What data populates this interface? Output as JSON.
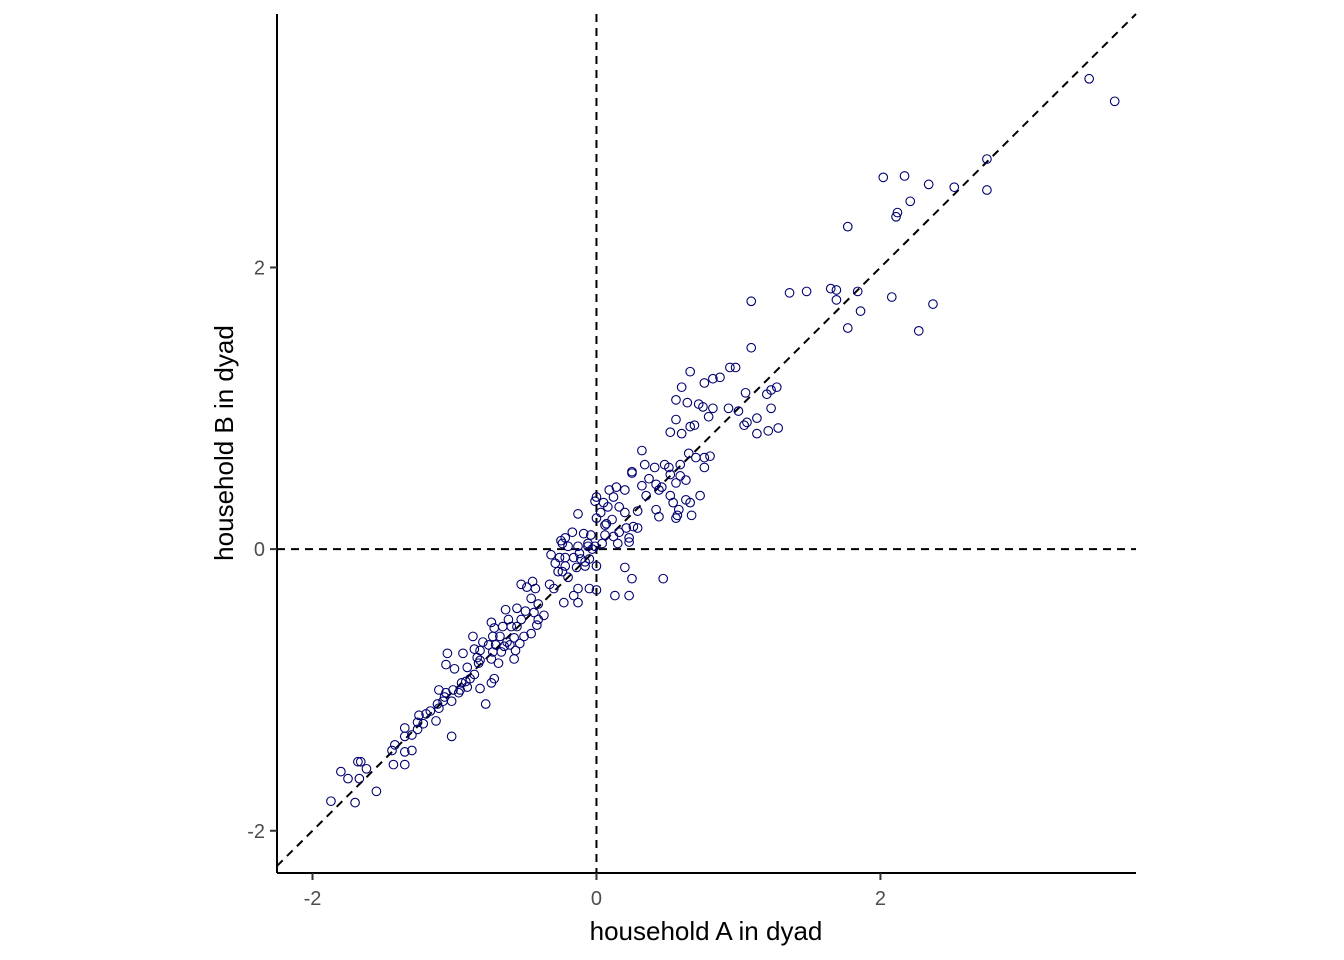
{
  "chart_data": {
    "type": "scatter",
    "title": "",
    "xlabel": "household A in dyad",
    "ylabel": "household B in dyad",
    "xlim": [
      -2.25,
      3.8
    ],
    "ylim": [
      -2.3,
      3.8
    ],
    "x_ticks": [
      -2,
      0,
      2
    ],
    "x_tick_labels": [
      "-2",
      "0",
      "2"
    ],
    "y_ticks": [
      -2,
      0,
      2
    ],
    "y_tick_labels": [
      "-2",
      "0",
      "2"
    ],
    "grid": false,
    "legend": "none",
    "point_color": "#00006e",
    "reference_lines": [
      {
        "kind": "vertical",
        "x": 0,
        "style": "dashed"
      },
      {
        "kind": "horizontal",
        "y": 0,
        "style": "dashed"
      },
      {
        "kind": "identity",
        "slope": 1,
        "intercept": 0,
        "style": "dashed"
      }
    ],
    "series": [
      {
        "points": [
          [
            3.47,
            3.34
          ],
          [
            3.65,
            3.18
          ],
          [
            2.75,
            2.77
          ],
          [
            2.75,
            2.55
          ],
          [
            2.52,
            2.57
          ],
          [
            2.34,
            2.59
          ],
          [
            2.17,
            2.65
          ],
          [
            2.02,
            2.64
          ],
          [
            2.12,
            2.39
          ],
          [
            2.21,
            2.47
          ],
          [
            2.11,
            2.36
          ],
          [
            1.77,
            2.29
          ],
          [
            1.36,
            1.82
          ],
          [
            1.48,
            1.83
          ],
          [
            1.65,
            1.85
          ],
          [
            1.69,
            1.84
          ],
          [
            1.69,
            1.77
          ],
          [
            1.84,
            1.83
          ],
          [
            1.86,
            1.69
          ],
          [
            2.08,
            1.79
          ],
          [
            2.37,
            1.74
          ],
          [
            1.09,
            1.76
          ],
          [
            1.77,
            1.57
          ],
          [
            2.27,
            1.55
          ],
          [
            1.09,
            1.43
          ],
          [
            0.94,
            1.29
          ],
          [
            0.98,
            1.29
          ],
          [
            0.66,
            1.26
          ],
          [
            0.6,
            1.15
          ],
          [
            0.76,
            1.18
          ],
          [
            0.87,
            1.22
          ],
          [
            0.82,
            1.21
          ],
          [
            1.27,
            1.15
          ],
          [
            1.05,
            1.11
          ],
          [
            1.2,
            1.1
          ],
          [
            1.23,
            1.13
          ],
          [
            0.56,
            1.06
          ],
          [
            0.64,
            1.04
          ],
          [
            0.75,
            1.01
          ],
          [
            0.72,
            1.03
          ],
          [
            0.82,
            1.0
          ],
          [
            1.23,
            1.0
          ],
          [
            0.93,
            1.0
          ],
          [
            1.0,
            0.98
          ],
          [
            1.13,
            0.93
          ],
          [
            0.56,
            0.92
          ],
          [
            0.79,
            0.94
          ],
          [
            0.69,
            0.88
          ],
          [
            0.66,
            0.87
          ],
          [
            1.04,
            0.88
          ],
          [
            1.06,
            0.9
          ],
          [
            1.21,
            0.84
          ],
          [
            1.28,
            0.86
          ],
          [
            1.13,
            0.82
          ],
          [
            0.52,
            0.83
          ],
          [
            0.6,
            0.82
          ],
          [
            0.76,
            0.65
          ],
          [
            0.8,
            0.66
          ],
          [
            0.7,
            0.65
          ],
          [
            0.65,
            0.68
          ],
          [
            0.32,
            0.7
          ],
          [
            0.25,
            0.55
          ],
          [
            0.25,
            0.54
          ],
          [
            0.34,
            0.6
          ],
          [
            0.48,
            0.6
          ],
          [
            0.41,
            0.58
          ],
          [
            0.51,
            0.58
          ],
          [
            0.59,
            0.6
          ],
          [
            0.76,
            0.58
          ],
          [
            0.52,
            0.53
          ],
          [
            0.59,
            0.52
          ],
          [
            0.37,
            0.5
          ],
          [
            0.42,
            0.46
          ],
          [
            0.56,
            0.47
          ],
          [
            0.63,
            0.49
          ],
          [
            0.32,
            0.45
          ],
          [
            0.46,
            0.44
          ],
          [
            0.44,
            0.42
          ],
          [
            0.35,
            0.38
          ],
          [
            0.52,
            0.38
          ],
          [
            0.63,
            0.35
          ],
          [
            0.73,
            0.38
          ],
          [
            0.54,
            0.33
          ],
          [
            0.66,
            0.33
          ],
          [
            0.58,
            0.28
          ],
          [
            0.42,
            0.28
          ],
          [
            0.2,
            0.42
          ],
          [
            0.09,
            0.42
          ],
          [
            0.12,
            0.37
          ],
          [
            0.16,
            0.3
          ],
          [
            0.08,
            0.3
          ],
          [
            0.0,
            0.37
          ],
          [
            -0.01,
            0.34
          ],
          [
            0.05,
            0.33
          ],
          [
            0.2,
            0.26
          ],
          [
            0.29,
            0.27
          ],
          [
            0.44,
            0.23
          ],
          [
            0.56,
            0.22
          ],
          [
            0.57,
            0.24
          ],
          [
            0.67,
            0.24
          ],
          [
            0.07,
            0.18
          ],
          [
            0.06,
            0.17
          ],
          [
            0.0,
            0.22
          ],
          [
            0.21,
            0.15
          ],
          [
            0.26,
            0.16
          ],
          [
            0.29,
            0.15
          ],
          [
            -0.13,
            0.25
          ],
          [
            0.16,
            0.12
          ],
          [
            0.06,
            0.1
          ],
          [
            0.12,
            0.09
          ],
          [
            -0.09,
            0.11
          ],
          [
            -0.04,
            0.1
          ],
          [
            -0.17,
            0.12
          ],
          [
            0.23,
            0.08
          ],
          [
            0.23,
            0.05
          ],
          [
            0.15,
            0.04
          ],
          [
            -0.22,
            0.08
          ],
          [
            -0.25,
            0.06
          ],
          [
            -0.06,
            0.04
          ],
          [
            0.04,
            0.04
          ],
          [
            -0.24,
            0.04
          ],
          [
            -0.2,
            0.02
          ],
          [
            -0.13,
            0.02
          ],
          [
            -0.06,
            0.02
          ],
          [
            -0.01,
            0.02
          ],
          [
            -0.03,
            0.0
          ],
          [
            -0.32,
            -0.04
          ],
          [
            -0.22,
            -0.06
          ],
          [
            -0.16,
            -0.06
          ],
          [
            -0.11,
            -0.07
          ],
          [
            -0.08,
            -0.09
          ],
          [
            -0.26,
            -0.06
          ],
          [
            -0.29,
            -0.1
          ],
          [
            -0.22,
            -0.12
          ],
          [
            -0.14,
            -0.13
          ],
          [
            -0.08,
            -0.12
          ],
          [
            0.0,
            -0.12
          ],
          [
            -0.24,
            -0.16
          ],
          [
            -0.27,
            -0.16
          ],
          [
            -0.2,
            -0.2
          ],
          [
            -0.33,
            -0.25
          ],
          [
            -0.45,
            -0.23
          ],
          [
            -0.49,
            -0.27
          ],
          [
            -0.53,
            -0.25
          ],
          [
            -0.43,
            -0.28
          ],
          [
            -0.3,
            -0.28
          ],
          [
            -0.13,
            -0.28
          ],
          [
            -0.05,
            -0.28
          ],
          [
            0.0,
            -0.29
          ],
          [
            0.13,
            -0.33
          ],
          [
            0.23,
            -0.33
          ],
          [
            0.25,
            -0.21
          ],
          [
            0.47,
            -0.21
          ],
          [
            -0.16,
            -0.33
          ],
          [
            -0.23,
            -0.38
          ],
          [
            -0.13,
            -0.38
          ],
          [
            -0.46,
            -0.35
          ],
          [
            -0.41,
            -0.39
          ],
          [
            -0.44,
            -0.45
          ],
          [
            -0.5,
            -0.44
          ],
          [
            -0.56,
            -0.42
          ],
          [
            -0.64,
            -0.43
          ],
          [
            -0.37,
            -0.47
          ],
          [
            -0.53,
            -0.5
          ],
          [
            -0.62,
            -0.5
          ],
          [
            -0.74,
            -0.52
          ],
          [
            -0.41,
            -0.5
          ],
          [
            -0.42,
            -0.54
          ],
          [
            -0.56,
            -0.55
          ],
          [
            -0.6,
            -0.55
          ],
          [
            -0.66,
            -0.55
          ],
          [
            -0.72,
            -0.56
          ],
          [
            -0.46,
            -0.6
          ],
          [
            -0.51,
            -0.62
          ],
          [
            -0.58,
            -0.63
          ],
          [
            -0.63,
            -0.66
          ],
          [
            -0.68,
            -0.62
          ],
          [
            -0.73,
            -0.62
          ],
          [
            -0.54,
            -0.67
          ],
          [
            -0.61,
            -0.68
          ],
          [
            -0.65,
            -0.69
          ],
          [
            -0.71,
            -0.68
          ],
          [
            -0.76,
            -0.68
          ],
          [
            -0.8,
            -0.66
          ],
          [
            -0.82,
            -0.72
          ],
          [
            -0.86,
            -0.71
          ],
          [
            -0.73,
            -0.73
          ],
          [
            -0.57,
            -0.72
          ],
          [
            -0.67,
            -0.73
          ],
          [
            -0.74,
            -0.78
          ],
          [
            -0.84,
            -0.77
          ],
          [
            -0.82,
            -0.79
          ],
          [
            -0.58,
            -0.78
          ],
          [
            -0.69,
            -0.81
          ],
          [
            -0.83,
            -0.81
          ],
          [
            -0.91,
            -0.84
          ],
          [
            -0.86,
            -0.89
          ],
          [
            -0.89,
            -0.92
          ],
          [
            -0.92,
            -0.94
          ],
          [
            -0.95,
            -0.95
          ],
          [
            -1.05,
            -0.74
          ],
          [
            -0.94,
            -0.74
          ],
          [
            -1.06,
            -0.82
          ],
          [
            -1.0,
            -0.85
          ],
          [
            -0.91,
            -0.98
          ],
          [
            -0.96,
            -1.0
          ],
          [
            -0.82,
            -0.99
          ],
          [
            -0.74,
            -0.95
          ],
          [
            -0.72,
            -0.92
          ],
          [
            -1.01,
            -1.0
          ],
          [
            -0.97,
            -1.02
          ],
          [
            -1.06,
            -1.02
          ],
          [
            -1.07,
            -1.05
          ],
          [
            -1.11,
            -1.0
          ],
          [
            -1.02,
            -1.08
          ],
          [
            -1.08,
            -1.08
          ],
          [
            -1.12,
            -1.1
          ],
          [
            -1.11,
            -1.13
          ],
          [
            -1.17,
            -1.15
          ],
          [
            -1.2,
            -1.17
          ],
          [
            -1.13,
            -1.22
          ],
          [
            -1.22,
            -1.24
          ],
          [
            -1.26,
            -1.23
          ],
          [
            -1.26,
            -1.28
          ],
          [
            -0.78,
            -1.1
          ],
          [
            -1.02,
            -1.33
          ],
          [
            -1.3,
            -1.32
          ],
          [
            -1.35,
            -1.27
          ],
          [
            -1.35,
            -1.33
          ],
          [
            -1.42,
            -1.39
          ],
          [
            -1.44,
            -1.43
          ],
          [
            -1.3,
            -1.43
          ],
          [
            -1.35,
            -1.44
          ],
          [
            -1.35,
            -1.53
          ],
          [
            -1.43,
            -1.53
          ],
          [
            -1.66,
            -1.51
          ],
          [
            -1.68,
            -1.51
          ],
          [
            -1.62,
            -1.56
          ],
          [
            -1.75,
            -1.63
          ],
          [
            -1.67,
            -1.63
          ],
          [
            -1.55,
            -1.72
          ],
          [
            -1.7,
            -1.8
          ],
          [
            -1.87,
            -1.79
          ],
          [
            -1.8,
            -1.58
          ],
          [
            -0.87,
            -0.62
          ],
          [
            -1.25,
            -1.18
          ],
          [
            0.03,
            0.26
          ],
          [
            -0.05,
            -0.07
          ],
          [
            -0.12,
            -0.03
          ],
          [
            0.14,
            0.44
          ],
          [
            0.11,
            0.21
          ],
          [
            0.2,
            -0.13
          ]
        ]
      }
    ]
  }
}
